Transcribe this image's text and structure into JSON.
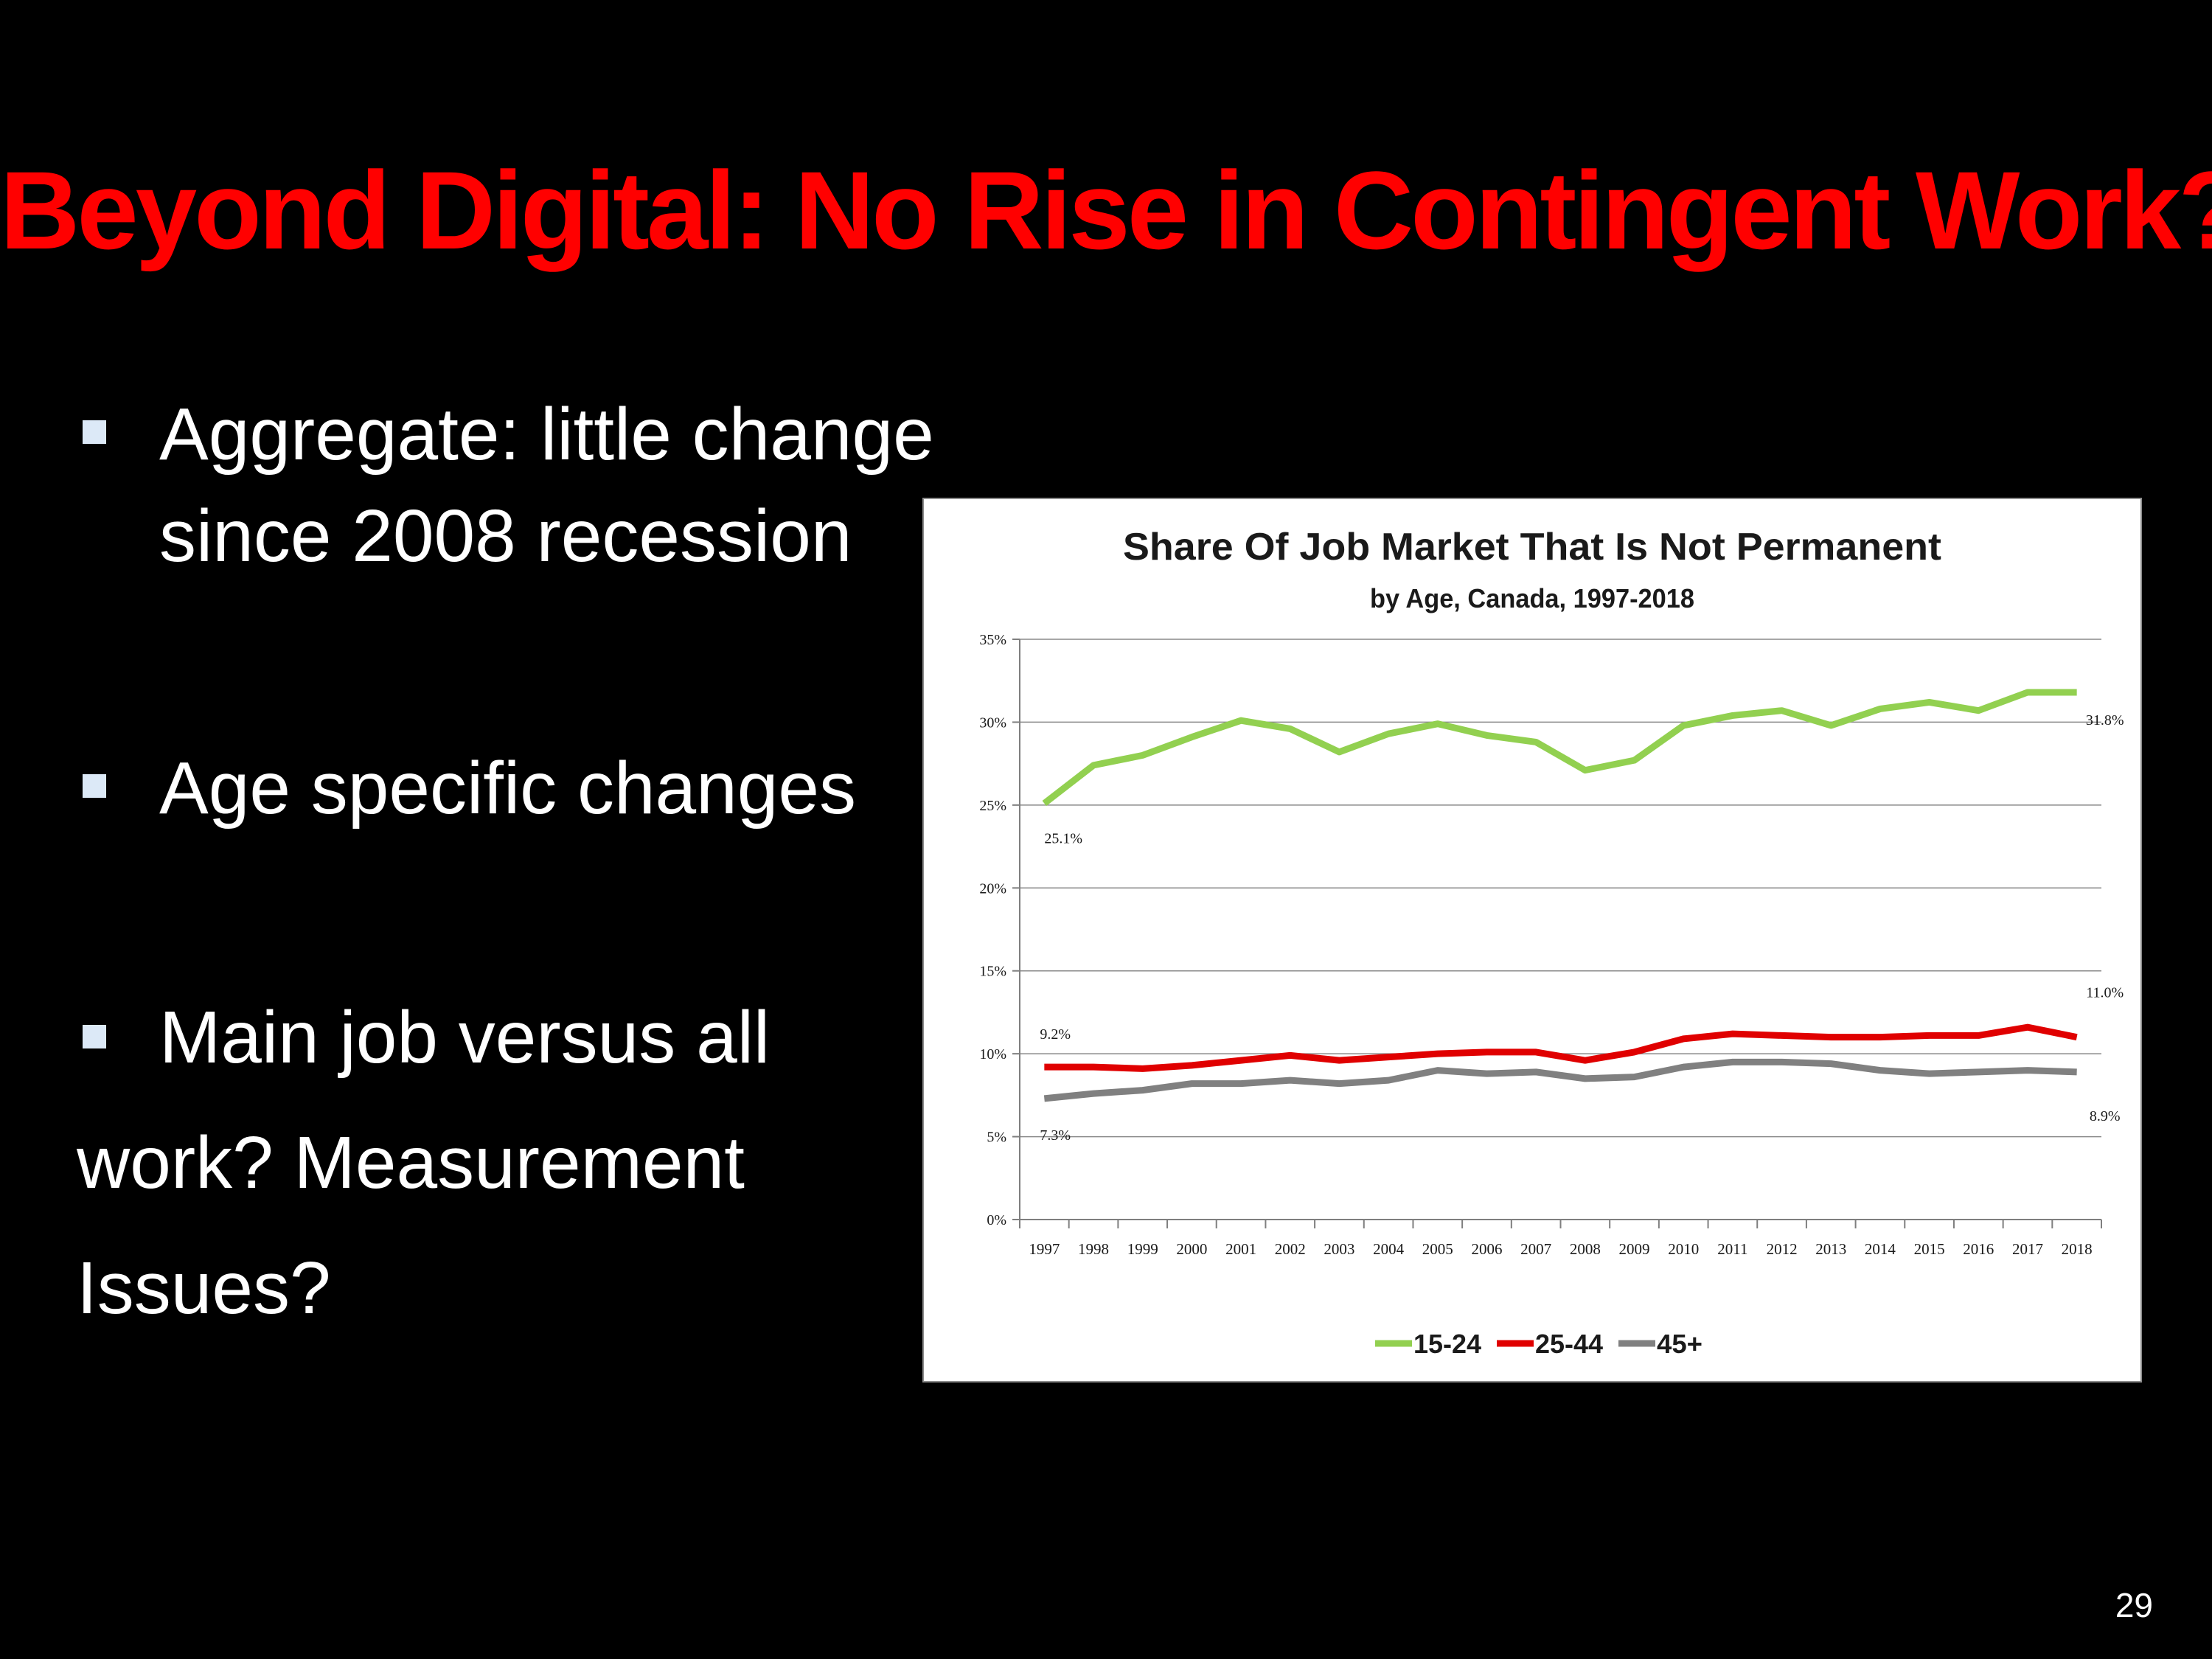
{
  "slide": {
    "title": "Beyond Digital: No Rise in Contingent Work?",
    "bullets": [
      {
        "lines": [
          "Aggregate: little change",
          "since 2008 recession"
        ]
      },
      {
        "lines": [
          "Age specific changes"
        ]
      },
      {
        "lines": [
          "Main job versus all",
          "work? Measurement",
          "Issues?"
        ]
      }
    ],
    "page_number": "29"
  },
  "colors": {
    "title": "#ff0000",
    "text": "#ffffff",
    "background": "#000000",
    "bullet_marker": "#dce9f7"
  },
  "chart_data": {
    "type": "line",
    "title": "Share Of Job Market That Is Not Permanent",
    "subtitle": "by Age, Canada, 1997-2018",
    "xlabel": "",
    "ylabel": "",
    "ylim": [
      0,
      35
    ],
    "yticks": [
      "0%",
      "5%",
      "10%",
      "15%",
      "20%",
      "25%",
      "30%",
      "35%"
    ],
    "categories": [
      "1997",
      "1998",
      "1999",
      "2000",
      "2001",
      "2002",
      "2003",
      "2004",
      "2005",
      "2006",
      "2007",
      "2008",
      "2009",
      "2010",
      "2011",
      "2012",
      "2013",
      "2014",
      "2015",
      "2016",
      "2017",
      "2018"
    ],
    "grid": true,
    "legend": "bottom",
    "series": [
      {
        "name": "15-24",
        "color": "#92d050",
        "values": [
          25.1,
          27.4,
          28.0,
          29.1,
          30.1,
          29.6,
          28.2,
          29.3,
          29.9,
          29.2,
          28.8,
          27.1,
          27.7,
          29.8,
          30.4,
          30.7,
          29.8,
          30.8,
          31.2,
          30.7,
          31.8,
          31.8
        ],
        "labels": {
          "first": "25.1%",
          "last": "31.8%"
        }
      },
      {
        "name": "25-44",
        "color": "#e00000",
        "values": [
          9.2,
          9.2,
          9.1,
          9.3,
          9.6,
          9.9,
          9.6,
          9.8,
          10.0,
          10.1,
          10.1,
          9.6,
          10.1,
          10.9,
          11.2,
          11.1,
          11.0,
          11.0,
          11.1,
          11.1,
          11.6,
          11.0
        ],
        "labels": {
          "first": "9.2%",
          "last": "11.0%"
        }
      },
      {
        "name": "45+",
        "color": "#808080",
        "values": [
          7.3,
          7.6,
          7.8,
          8.2,
          8.2,
          8.4,
          8.2,
          8.4,
          9.0,
          8.8,
          8.9,
          8.5,
          8.6,
          9.2,
          9.5,
          9.5,
          9.4,
          9.0,
          8.8,
          8.9,
          9.0,
          8.9
        ],
        "labels": {
          "first": "7.3%",
          "last": "8.9%"
        }
      }
    ]
  }
}
